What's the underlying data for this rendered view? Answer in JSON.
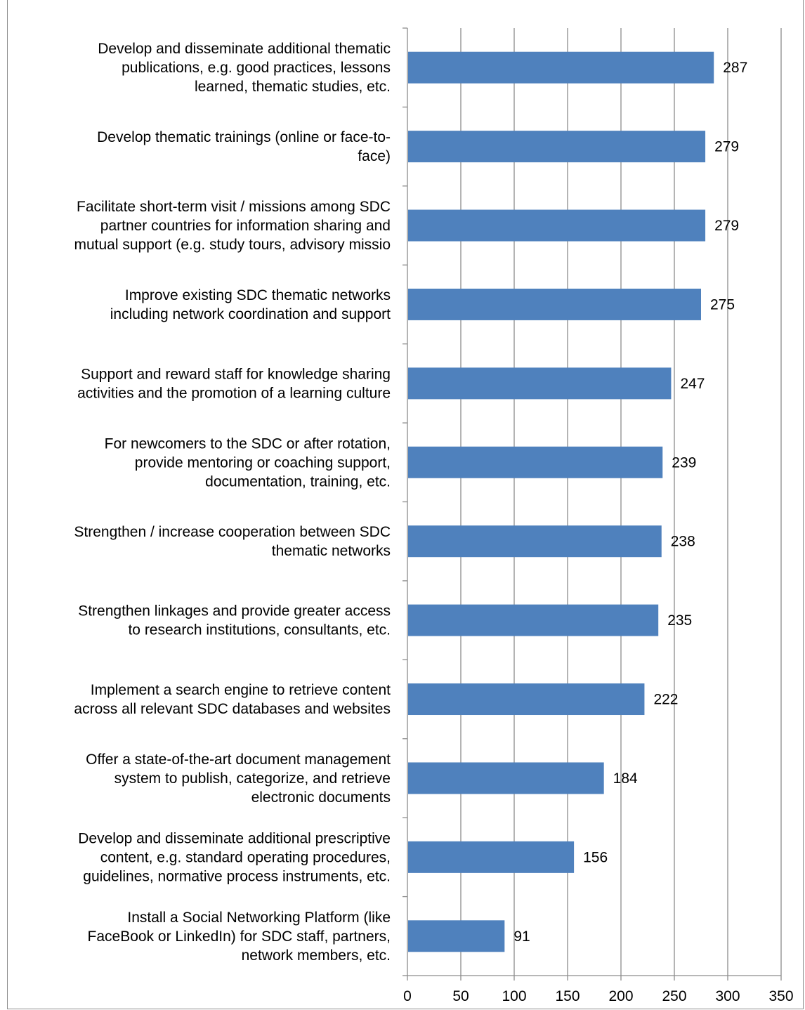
{
  "chart_data": {
    "type": "bar",
    "orientation": "horizontal",
    "categories": [
      [
        "Develop and disseminate additional thematic",
        "publications, e.g. good practices, lessons",
        "learned, thematic studies, etc."
      ],
      [
        "Develop thematic trainings (online or face-to-",
        "face)"
      ],
      [
        "Facilitate short-term visit / missions among SDC",
        "partner countries for information sharing and",
        "mutual support (e.g. study tours, advisory missio"
      ],
      [
        "Improve existing SDC thematic networks",
        "including network coordination and support"
      ],
      [
        "Support and reward staff for knowledge sharing",
        "activities and the promotion of a learning culture"
      ],
      [
        "For newcomers to the SDC or after rotation,",
        "provide mentoring or coaching support,",
        "documentation, training, etc."
      ],
      [
        "Strengthen / increase cooperation between SDC",
        "thematic networks"
      ],
      [
        "Strengthen linkages and provide greater access",
        "to research institutions, consultants, etc."
      ],
      [
        "Implement a search engine to retrieve content",
        "across all relevant SDC databases and websites"
      ],
      [
        "Offer a state-of-the-art document management",
        "system to publish, categorize, and retrieve",
        "electronic documents"
      ],
      [
        "Develop and disseminate additional prescriptive",
        "content, e.g. standard operating procedures,",
        "guidelines, normative process instruments, etc."
      ],
      [
        "Install a Social Networking Platform (like",
        "FaceBook or LinkedIn) for SDC staff, partners,",
        "network members, etc."
      ]
    ],
    "values": [
      287,
      279,
      279,
      275,
      247,
      239,
      238,
      235,
      222,
      184,
      156,
      91
    ],
    "xlim": [
      0,
      350
    ],
    "xticks": [
      0,
      50,
      100,
      150,
      200,
      250,
      300,
      350
    ],
    "title": "",
    "xlabel": "",
    "ylabel": "",
    "grid": "vertical",
    "legend": "none",
    "bar_color": "#4f81bd"
  }
}
